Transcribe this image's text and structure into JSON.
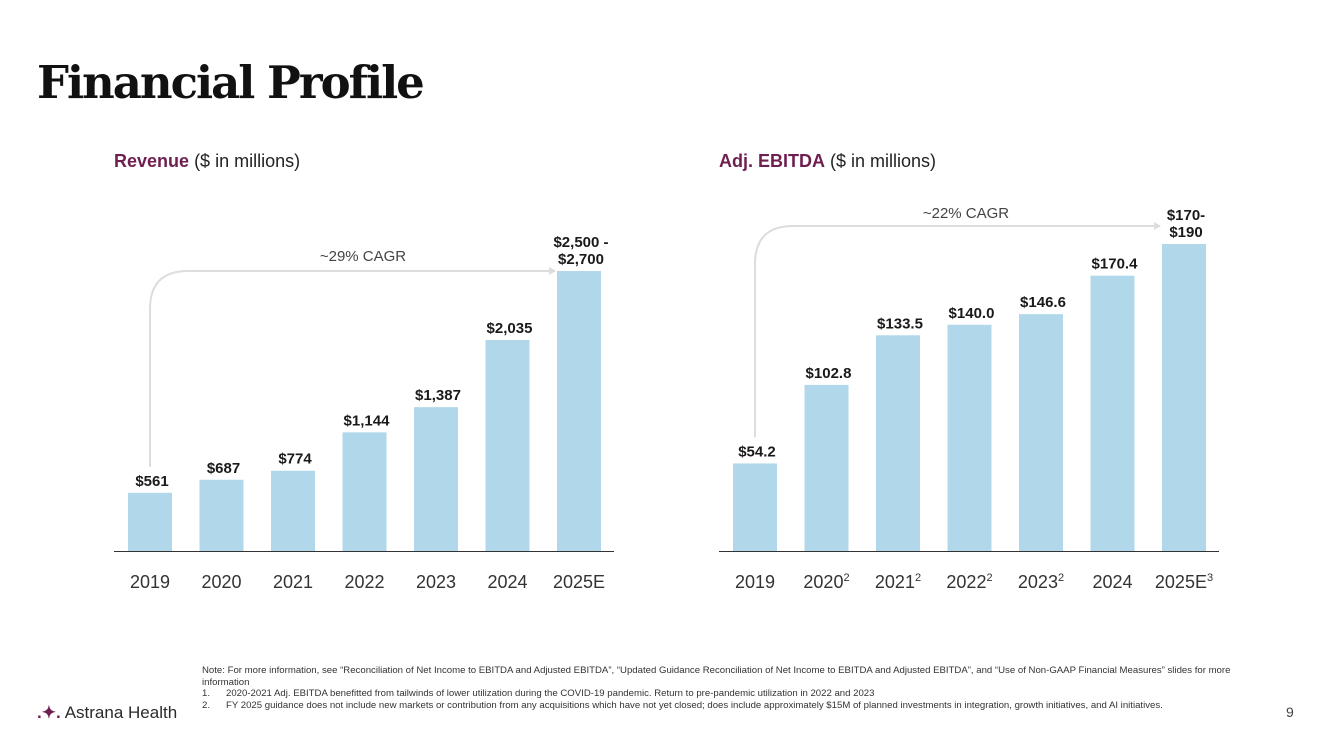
{
  "slide": {
    "title": "Financial Profile",
    "page_number": "9"
  },
  "revenue": {
    "title_bold": "Revenue",
    "title_rest": "($ in millions)",
    "cagr": "~29% CAGR"
  },
  "ebitda": {
    "title_bold": "Adj. EBITDA",
    "title_rest": "($ in millions)",
    "cagr": "~22% CAGR"
  },
  "chart_data": [
    {
      "type": "bar",
      "title": "Revenue ($ in millions)",
      "categories": [
        "2019",
        "2020",
        "2021",
        "2022",
        "2023",
        "2024",
        "2025E"
      ],
      "category_superscripts": [
        "",
        "",
        "",
        "",
        "",
        "",
        ""
      ],
      "values": [
        561,
        687,
        774,
        1144,
        1387,
        2035,
        2700
      ],
      "labels": [
        "$561",
        "$687",
        "$774",
        "$1,144",
        "$1,387",
        "$2,035",
        "$2,500 -\n$2,700"
      ],
      "annotation": "~29% CAGR",
      "ylim": [
        0,
        2700
      ],
      "color": "#b1d8ea"
    },
    {
      "type": "bar",
      "title": "Adj. EBITDA ($ in millions)",
      "categories": [
        "2019",
        "2020",
        "2021",
        "2022",
        "2023",
        "2024",
        "2025E"
      ],
      "category_superscripts": [
        "",
        "2",
        "2",
        "2",
        "2",
        "",
        "3"
      ],
      "values": [
        54.2,
        102.8,
        133.5,
        140.0,
        146.6,
        170.4,
        190
      ],
      "labels": [
        "$54.2",
        "$102.8",
        "$133.5",
        "$140.0",
        "$146.6",
        "$170.4",
        "$170-\n$190"
      ],
      "annotation": "~22% CAGR",
      "ylim": [
        0,
        190
      ],
      "color": "#b1d8ea"
    }
  ],
  "footnotes": {
    "note": "Note: For more information, see “Reconciliation of Net Income to EBITDA and Adjusted EBITDA”, “Updated Guidance Reconciliation of Net Income to EBITDA and Adjusted EBITDA”, and “Use of Non-GAAP Financial Measures” slides for more information",
    "items": [
      {
        "num": "1.",
        "text": "2020-2021 Adj. EBITDA benefitted from tailwinds of lower utilization during the COVID-19 pandemic. Return to pre-pandemic utilization in 2022 and 2023"
      },
      {
        "num": "2.",
        "text": "FY 2025 guidance does not include new markets or contribution from any acquisitions which have not yet closed; does include approximately $15M of planned investments in integration, growth initiatives, and AI initiatives."
      }
    ]
  },
  "logo": {
    "text": "Astrana Health",
    "icon": "sparkle-icon"
  }
}
